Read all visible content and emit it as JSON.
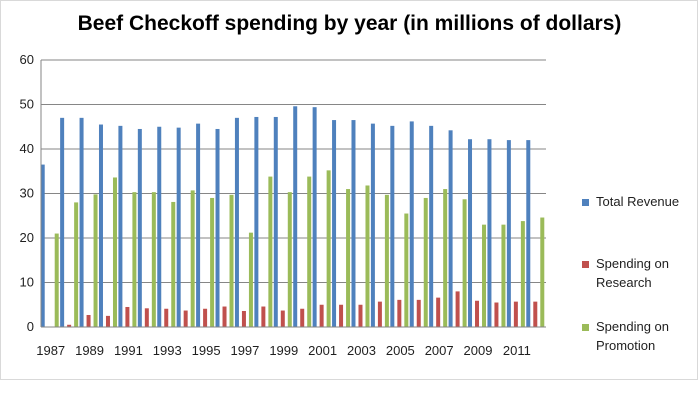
{
  "chart_data": {
    "type": "bar",
    "title": "Beef Checkoff spending by year (in millions of dollars)",
    "xlabel": "",
    "ylabel": "",
    "ylim": [
      0,
      60
    ],
    "yticks": [
      0,
      10,
      20,
      30,
      40,
      50,
      60
    ],
    "grid": true,
    "legend_position": "right",
    "categories": [
      "1987",
      "1988",
      "1989",
      "1990",
      "1991",
      "1992",
      "1993",
      "1994",
      "1995",
      "1996",
      "1997",
      "1998",
      "1999",
      "2000",
      "2001",
      "2002",
      "2003",
      "2004",
      "2005",
      "2006",
      "2007",
      "2008",
      "2009",
      "2010",
      "2011",
      "2012"
    ],
    "xtick_labels": [
      "1987",
      "",
      "1989",
      "",
      "1991",
      "",
      "1993",
      "",
      "1995",
      "",
      "1997",
      "",
      "1999",
      "",
      "2001",
      "",
      "2003",
      "",
      "2005",
      "",
      "2007",
      "",
      "2009",
      "",
      "2011",
      ""
    ],
    "series": [
      {
        "name": "Total Revenue",
        "color": "#4f81bd",
        "values": [
          36.5,
          47,
          47,
          45.5,
          45.2,
          44.5,
          45,
          44.8,
          45.7,
          44.5,
          47,
          47.2,
          47.2,
          49.6,
          49.4,
          46.5,
          46.5,
          45.7,
          45.2,
          46.2,
          45.2,
          44.2,
          42.2,
          42.2,
          42,
          42
        ]
      },
      {
        "name": "Spending on Research",
        "color": "#c0504d",
        "values": [
          0,
          0.5,
          2.7,
          2.5,
          4.5,
          4.2,
          4.1,
          3.7,
          4.1,
          4.6,
          3.6,
          4.6,
          3.7,
          4.1,
          5,
          5,
          5,
          5.7,
          6.1,
          6.1,
          6.6,
          8,
          5.9,
          5.5,
          5.7,
          5.7
        ]
      },
      {
        "name": "Spending on Promotion",
        "color": "#9bbb59",
        "values": [
          21,
          28,
          29.8,
          33.6,
          30.3,
          30.3,
          28.1,
          30.7,
          29,
          29.7,
          21.2,
          33.8,
          30.3,
          33.8,
          35.2,
          31,
          31.8,
          29.7,
          25.5,
          29,
          31,
          28.7,
          23,
          23,
          23.8,
          24.6
        ]
      }
    ]
  }
}
